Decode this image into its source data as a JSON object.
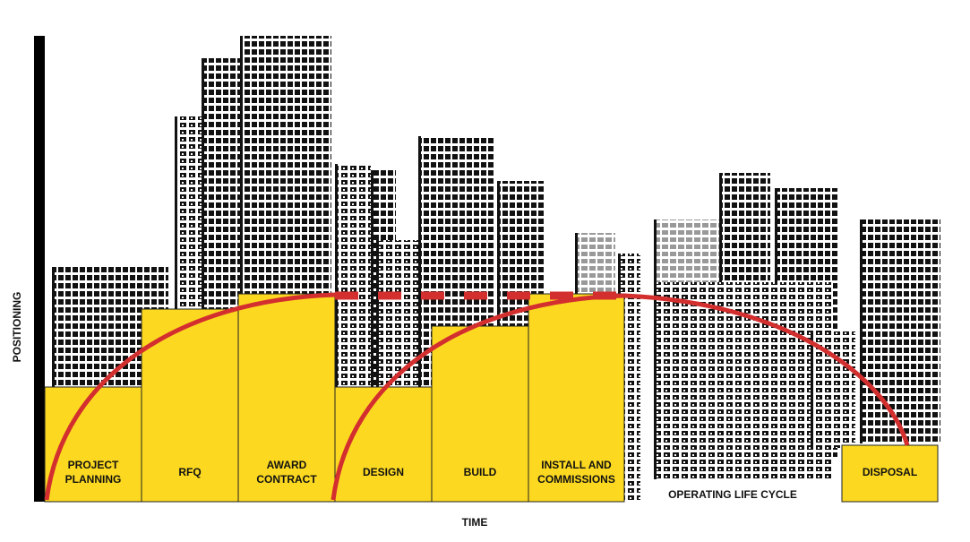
{
  "axes": {
    "y_label": "POSITIONING",
    "x_label": "TIME"
  },
  "stages": [
    {
      "lines": [
        "PROJECT",
        "PLANNING"
      ]
    },
    {
      "lines": [
        "RFQ"
      ]
    },
    {
      "lines": [
        "AWARD",
        "CONTRACT"
      ]
    },
    {
      "lines": [
        "DESIGN"
      ]
    },
    {
      "lines": [
        "BUILD"
      ]
    },
    {
      "lines": [
        "INSTALL AND",
        "COMMISSIONS"
      ]
    },
    {
      "lines": [
        "DISPOSAL"
      ]
    }
  ],
  "operating_label": "OPERATING LIFE CYCLE"
}
